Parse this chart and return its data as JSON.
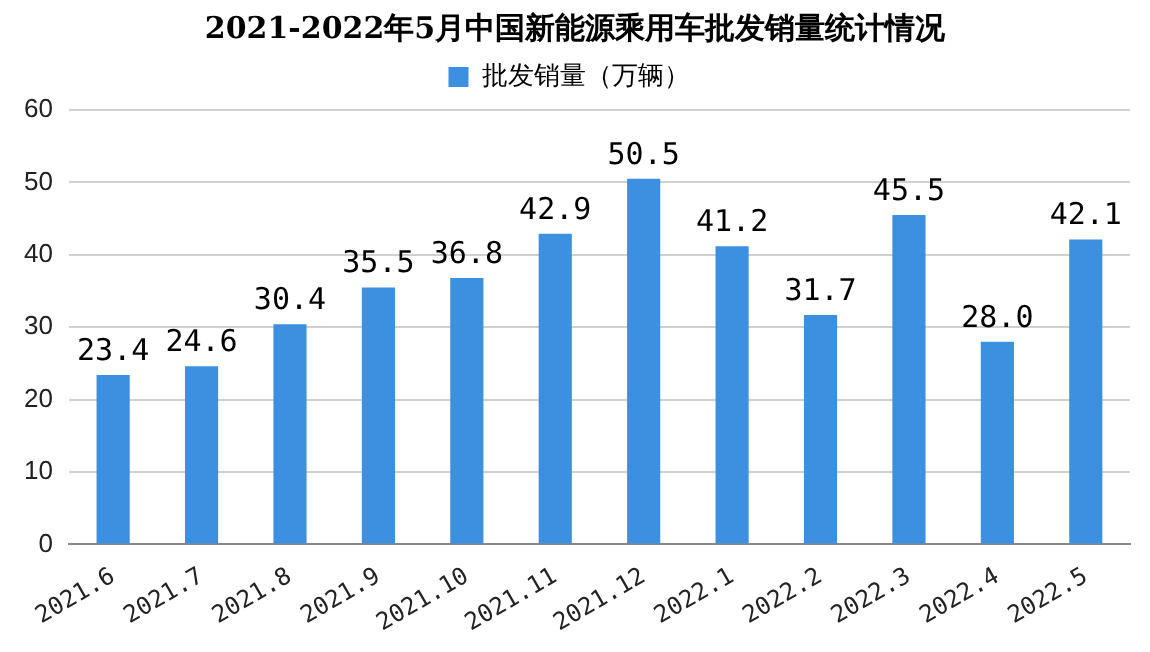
{
  "chart_data": {
    "type": "bar",
    "title": "2021-2022年5月中国新能源乘用车批发销量统计情况",
    "categories": [
      "2021.6",
      "2021.7",
      "2021.8",
      "2021.9",
      "2021.10",
      "2021.11",
      "2021.12",
      "2022.1",
      "2022.2",
      "2022.3",
      "2022.4",
      "2022.5"
    ],
    "series": [
      {
        "name": "批发销量（万辆）",
        "color": "#3d8fe0",
        "values": [
          23.4,
          24.6,
          30.4,
          35.5,
          36.8,
          42.9,
          50.5,
          41.2,
          31.7,
          45.5,
          28.0,
          42.1
        ],
        "value_labels": [
          "23.4",
          "24.6",
          "30.4",
          "35.5",
          "36.8",
          "42.9",
          "50.5",
          "41.2",
          "31.7",
          "45.5",
          "28.0",
          "42.1"
        ]
      }
    ],
    "ylim": [
      0,
      60
    ],
    "yticks": [
      0,
      10,
      20,
      30,
      40,
      50,
      60
    ],
    "grid": "y",
    "legend": "top"
  }
}
